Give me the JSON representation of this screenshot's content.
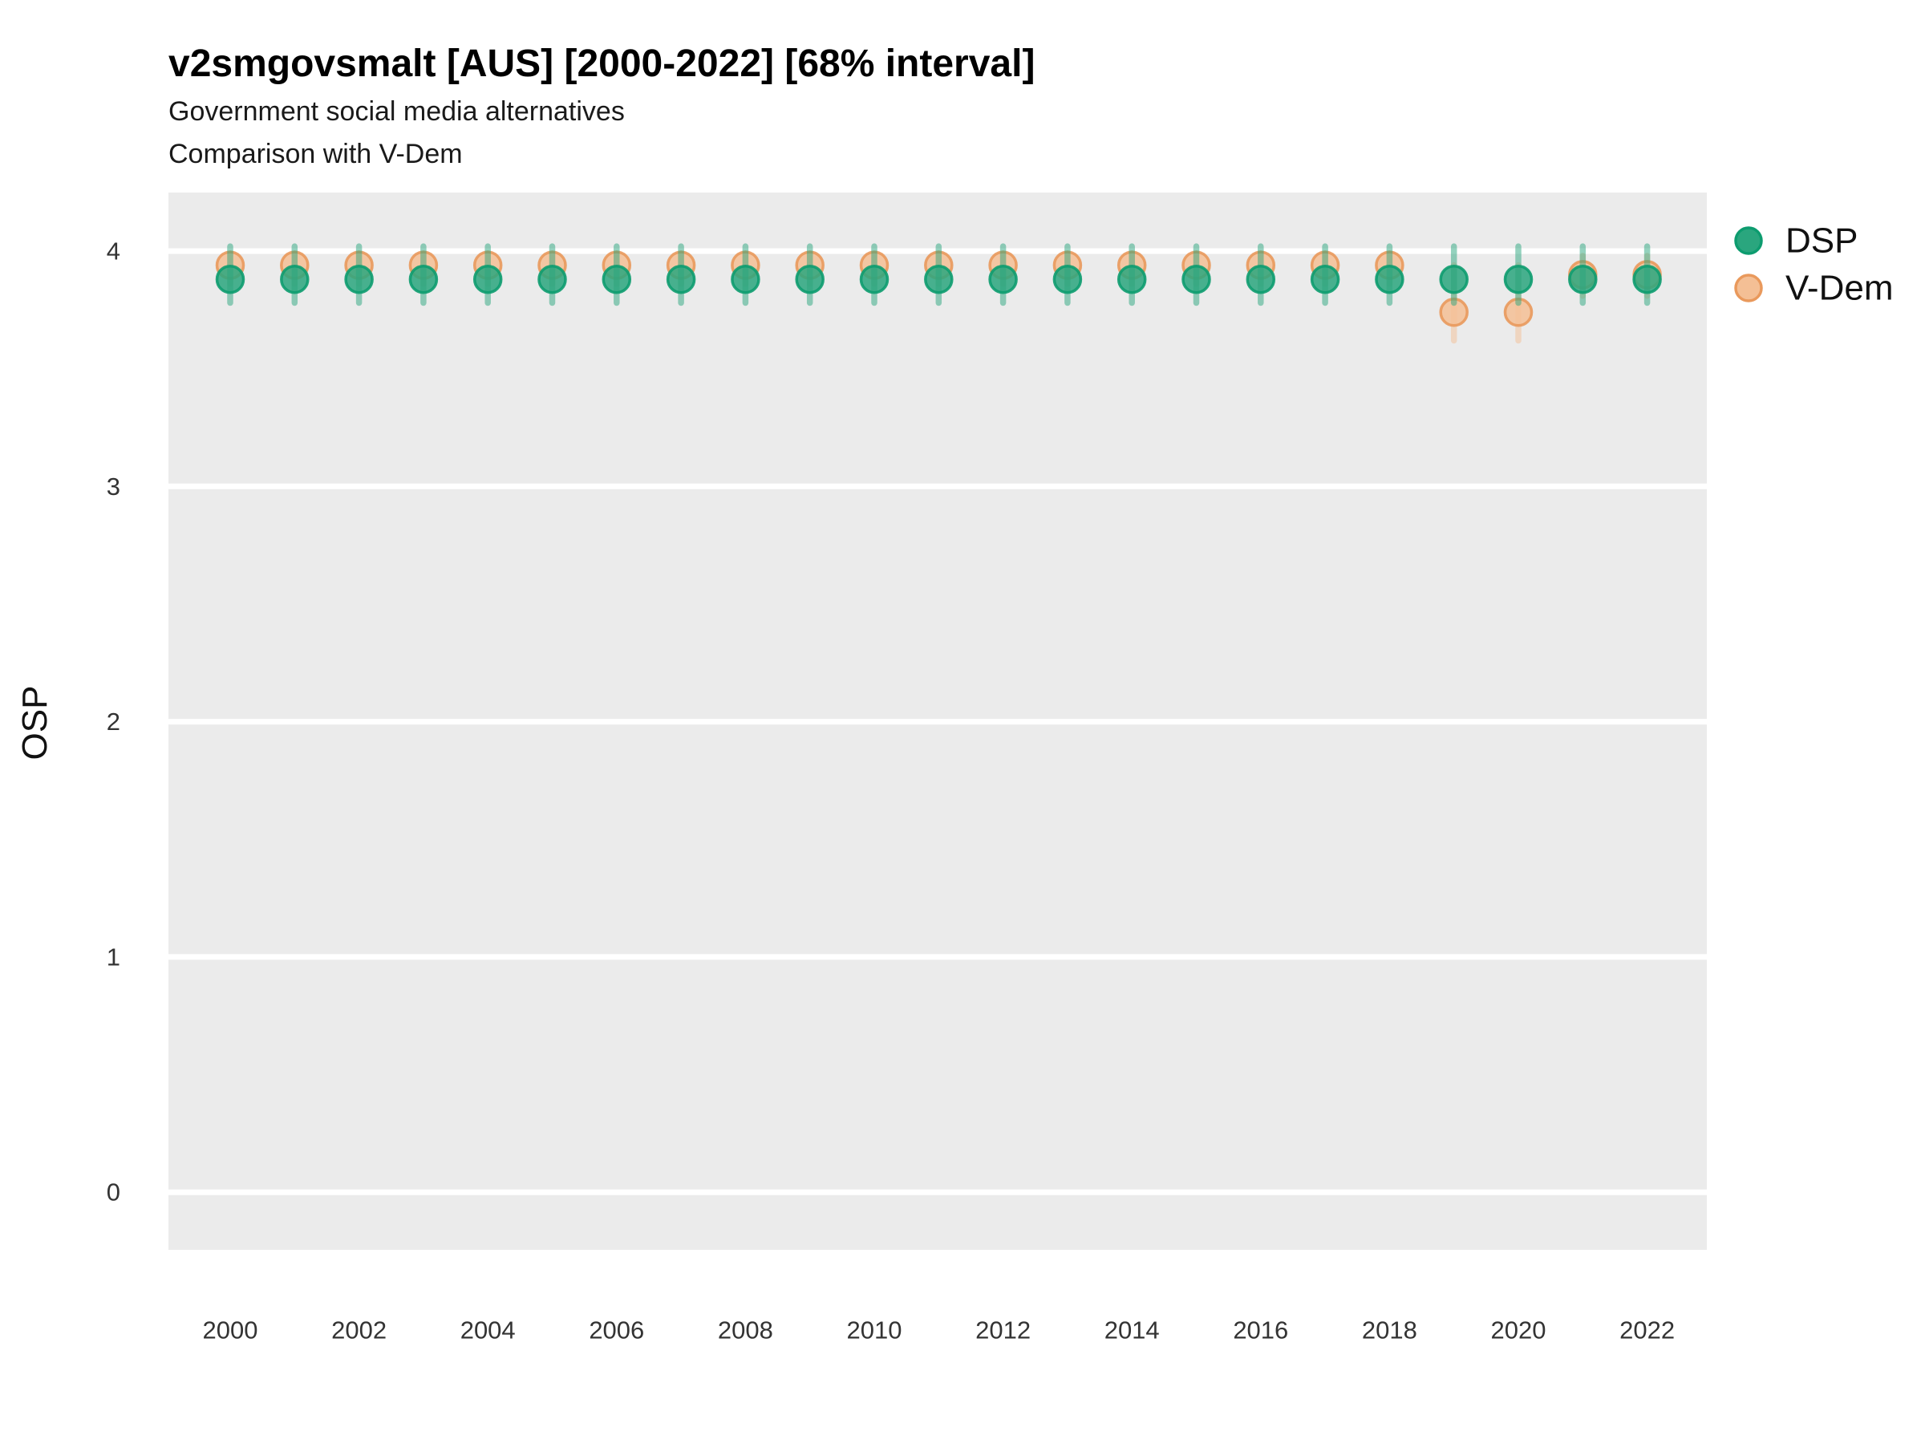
{
  "title": "v2smgovsmalt [AUS] [2000-2022] [68% interval]",
  "subtitle1": "Government social media alternatives",
  "subtitle2": "Comparison with V-Dem",
  "chart_data": {
    "type": "scatter",
    "title": "v2smgovsmalt [AUS] [2000-2022] [68% interval]",
    "subtitle": "Government social media alternatives — Comparison with V-Dem",
    "xlabel": "",
    "ylabel": "OSP",
    "x_ticks": [
      2000,
      2002,
      2004,
      2006,
      2008,
      2010,
      2012,
      2014,
      2016,
      2018,
      2020,
      2022
    ],
    "y_ticks": [
      0,
      1,
      2,
      3,
      4
    ],
    "xlim": [
      1999,
      2023
    ],
    "ylim": [
      -0.25,
      4.25
    ],
    "grid": "major horizontal white lines on grey panel, no minor grid",
    "legend_position": "top-right",
    "interval": "68%",
    "x": [
      2000,
      2001,
      2002,
      2003,
      2004,
      2005,
      2006,
      2007,
      2008,
      2009,
      2010,
      2011,
      2012,
      2013,
      2014,
      2015,
      2016,
      2017,
      2018,
      2019,
      2020,
      2021,
      2022
    ],
    "series": [
      {
        "name": "DSP",
        "fill": "#2aa67e",
        "stroke": "#0d9c6f",
        "est": [
          3.88,
          3.88,
          3.88,
          3.88,
          3.88,
          3.88,
          3.88,
          3.88,
          3.88,
          3.88,
          3.88,
          3.88,
          3.88,
          3.88,
          3.88,
          3.88,
          3.88,
          3.88,
          3.88,
          3.88,
          3.88,
          3.88,
          3.88
        ],
        "lo": [
          3.78,
          3.78,
          3.78,
          3.78,
          3.78,
          3.78,
          3.78,
          3.78,
          3.78,
          3.78,
          3.78,
          3.78,
          3.78,
          3.78,
          3.78,
          3.78,
          3.78,
          3.78,
          3.78,
          3.78,
          3.78,
          3.78,
          3.78
        ],
        "hi": [
          4.02,
          4.02,
          4.02,
          4.02,
          4.02,
          4.02,
          4.02,
          4.02,
          4.02,
          4.02,
          4.02,
          4.02,
          4.02,
          4.02,
          4.02,
          4.02,
          4.02,
          4.02,
          4.02,
          4.02,
          4.02,
          4.02,
          4.02
        ]
      },
      {
        "name": "V-Dem",
        "fill": "#f4bf95",
        "stroke": "#e9995c",
        "est": [
          3.94,
          3.94,
          3.94,
          3.94,
          3.94,
          3.94,
          3.94,
          3.94,
          3.94,
          3.94,
          3.94,
          3.94,
          3.94,
          3.94,
          3.94,
          3.94,
          3.94,
          3.94,
          3.94,
          3.74,
          3.74,
          3.9,
          3.9
        ],
        "lo": [
          3.86,
          3.86,
          3.86,
          3.86,
          3.86,
          3.86,
          3.86,
          3.86,
          3.86,
          3.86,
          3.86,
          3.86,
          3.86,
          3.86,
          3.86,
          3.86,
          3.86,
          3.86,
          3.86,
          3.62,
          3.62,
          3.81,
          3.81
        ],
        "hi": [
          3.99,
          3.99,
          3.99,
          3.99,
          3.99,
          3.99,
          3.99,
          3.99,
          3.99,
          3.99,
          3.99,
          3.99,
          3.99,
          3.99,
          3.99,
          3.99,
          3.99,
          3.99,
          3.99,
          3.94,
          3.94,
          3.98,
          3.98
        ]
      }
    ],
    "colors": {
      "panel_background": "#ebebeb",
      "gridline": "#ffffff",
      "dsp_fill": "#2aa67e",
      "dsp_stroke": "#0d9c6f",
      "vdem_fill": "#f4bf95",
      "vdem_stroke": "#e9995c"
    }
  },
  "legend": {
    "items": [
      {
        "label": "DSP",
        "fill": "#2aa67e",
        "stroke": "#0d9c6f"
      },
      {
        "label": "V-Dem",
        "fill": "#f4bf95",
        "stroke": "#e9995c"
      }
    ]
  }
}
